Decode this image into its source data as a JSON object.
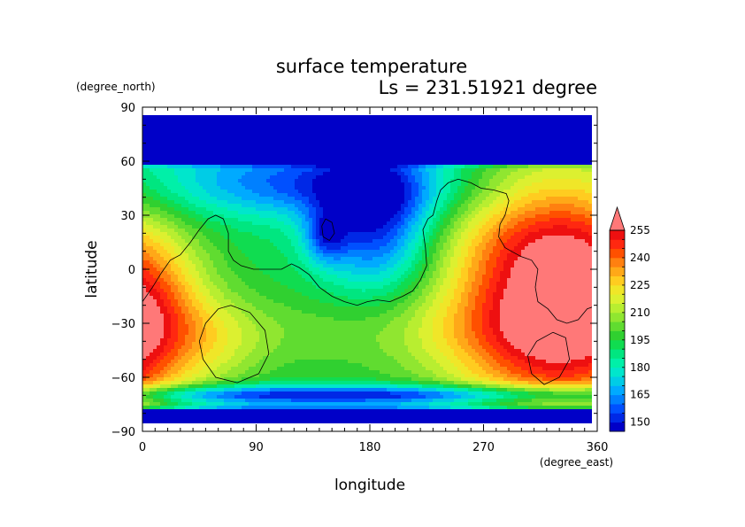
{
  "chart_data": {
    "type": "heatmap",
    "title": "surface temperature",
    "subtitle": "Ls = 231.51921 degree",
    "xlabel": "longitude",
    "ylabel": "latitude",
    "x_unit": "(degree_east)",
    "y_unit": "(degree_north)",
    "xlim": [
      0,
      360
    ],
    "ylim": [
      -90,
      90
    ],
    "x_ticks": [
      "0",
      "90",
      "180",
      "270",
      "360"
    ],
    "y_ticks": [
      "90",
      "60",
      "30",
      "0",
      "−30",
      "−60",
      "−90"
    ],
    "colorbar": {
      "levels": [
        145,
        150,
        155,
        160,
        165,
        170,
        175,
        180,
        185,
        190,
        195,
        200,
        205,
        210,
        215,
        220,
        225,
        230,
        235,
        240,
        245,
        250,
        255
      ],
      "labels": [
        "150",
        "165",
        "180",
        "195",
        "210",
        "225",
        "240",
        "255"
      ],
      "colors": [
        "#0000c8",
        "#0028e6",
        "#0050ff",
        "#0080ff",
        "#00aaff",
        "#00cce6",
        "#00e6cc",
        "#00f0a8",
        "#00e680",
        "#10dc50",
        "#30d030",
        "#60dc30",
        "#90e630",
        "#b8ee30",
        "#dcf030",
        "#f0e628",
        "#ffcc20",
        "#ffa818",
        "#ff8010",
        "#ff5000",
        "#ff2810",
        "#ee1010",
        "#ff7878"
      ],
      "extend": "max"
    },
    "contour_color": "#000000"
  }
}
